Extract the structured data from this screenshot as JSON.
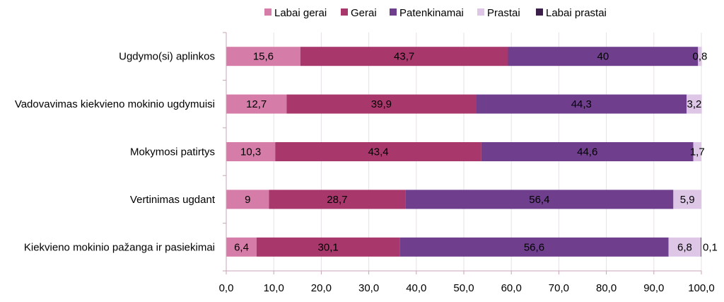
{
  "chart_data": {
    "type": "bar",
    "orientation": "horizontal",
    "stacked": true,
    "categories": [
      "Ugdymo(si) aplinkos",
      "Vadovavimas kiekvieno mokinio ugdymuisi",
      "Mokymosi patirtys",
      "Vertinimas ugdant",
      "Kiekvieno mokinio pažanga ir pasiekimai"
    ],
    "series": [
      {
        "name": "Labai gerai",
        "color": "#d67ca8",
        "values": [
          15.6,
          12.7,
          10.3,
          9,
          6.4
        ],
        "labels": [
          "15,6",
          "12,7",
          "10,3",
          "9",
          "6,4"
        ]
      },
      {
        "name": "Gerai",
        "color": "#a8376b",
        "values": [
          43.7,
          39.9,
          43.4,
          28.7,
          30.1
        ],
        "labels": [
          "43,7",
          "39,9",
          "43,4",
          "28,7",
          "30,1"
        ]
      },
      {
        "name": "Patenkinamai",
        "color": "#6f3f8e",
        "values": [
          40,
          44.3,
          44.6,
          56.4,
          56.6
        ],
        "labels": [
          "40",
          "44,3",
          "44,6",
          "56,4",
          "56,6"
        ]
      },
      {
        "name": "Prastai",
        "color": "#ddc6e6",
        "values": [
          0.8,
          3.2,
          1.7,
          5.9,
          6.8
        ],
        "labels": [
          "0,8",
          "3,2",
          "1,7",
          "5,9",
          "6,8"
        ]
      },
      {
        "name": "Labai prastai",
        "color": "#3b1f4a",
        "values": [
          0,
          0,
          0,
          0,
          0.1
        ],
        "labels": [
          "",
          "",
          "",
          "",
          "0,1"
        ]
      }
    ],
    "xlim": [
      0,
      100
    ],
    "xticks": [
      0,
      10,
      20,
      30,
      40,
      50,
      60,
      70,
      80,
      90,
      100
    ],
    "xtick_labels": [
      "0,0",
      "10,0",
      "20,0",
      "30,0",
      "40,0",
      "50,0",
      "60,0",
      "70,0",
      "80,0",
      "90,0",
      "100,0"
    ],
    "grid": true,
    "legend": "top"
  }
}
